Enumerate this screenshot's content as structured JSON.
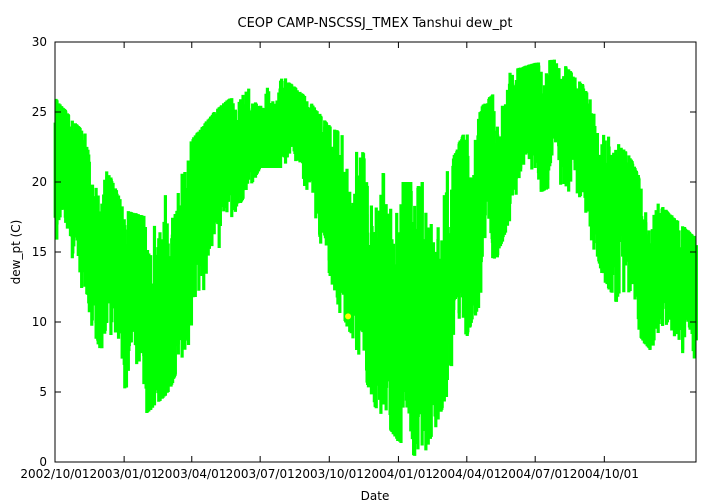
{
  "chart_data": {
    "type": "scatter",
    "title": "CEOP CAMP-NSCSSJ_TMEX Tanshui  dew_pt",
    "xlabel": "Date",
    "ylabel": "dew_pt (C)",
    "xlim": [
      "2002-10-01",
      "2005-01-31"
    ],
    "ylim": [
      0,
      30
    ],
    "x_ticks": [
      "2002/10/01",
      "2003/01/01",
      "2003/04/01",
      "2003/07/01",
      "2003/10/01",
      "2004/01/01",
      "2004/04/01",
      "2004/07/01",
      "2004/10/01"
    ],
    "y_ticks": [
      0,
      5,
      10,
      15,
      20,
      25,
      30
    ],
    "grid": false,
    "colors": {
      "main": "#00ff00",
      "flagged": "#ffff00"
    },
    "series": [
      {
        "color": "#00ff00",
        "envelope": [
          {
            "date": "2002-10-01",
            "min": 15,
            "max": 26
          },
          {
            "date": "2002-11-01",
            "min": 12,
            "max": 24
          },
          {
            "date": "2002-12-01",
            "min": 8,
            "max": 22
          },
          {
            "date": "2003-01-01",
            "min": 5,
            "max": 18
          },
          {
            "date": "2003-02-01",
            "min": 3.5,
            "max": 17.5
          },
          {
            "date": "2003-03-01",
            "min": 5,
            "max": 20
          },
          {
            "date": "2003-04-01",
            "min": 9,
            "max": 23
          },
          {
            "date": "2003-05-01",
            "min": 13,
            "max": 25
          },
          {
            "date": "2003-06-01",
            "min": 18,
            "max": 26.5
          },
          {
            "date": "2003-07-01",
            "min": 21,
            "max": 27.5
          },
          {
            "date": "2003-08-01",
            "min": 21,
            "max": 27.5
          },
          {
            "date": "2003-09-01",
            "min": 19,
            "max": 26
          },
          {
            "date": "2003-10-01",
            "min": 12,
            "max": 24
          },
          {
            "date": "2003-11-01",
            "min": 9,
            "max": 23
          },
          {
            "date": "2003-12-01",
            "min": 4,
            "max": 21
          },
          {
            "date": "2004-01-01",
            "min": 1.5,
            "max": 20
          },
          {
            "date": "2004-02-01",
            "min": 0,
            "max": 20
          },
          {
            "date": "2004-03-01",
            "min": 4,
            "max": 20
          },
          {
            "date": "2004-04-01",
            "min": 9,
            "max": 24
          },
          {
            "date": "2004-05-01",
            "min": 13,
            "max": 26
          },
          {
            "date": "2004-06-01",
            "min": 18,
            "max": 28
          },
          {
            "date": "2004-07-01",
            "min": 19,
            "max": 28.5
          },
          {
            "date": "2004-08-01",
            "min": 20,
            "max": 28.8
          },
          {
            "date": "2004-09-01",
            "min": 18,
            "max": 27
          },
          {
            "date": "2004-10-01",
            "min": 13,
            "max": 24
          },
          {
            "date": "2004-11-01",
            "min": 10,
            "max": 22
          },
          {
            "date": "2004-12-01",
            "min": 8,
            "max": 19
          },
          {
            "date": "2005-01-31",
            "min": 7,
            "max": 16
          }
        ]
      },
      {
        "color": "#ffff00",
        "points": [
          {
            "date": "2003-10-26",
            "y": 10.4
          }
        ]
      }
    ]
  }
}
